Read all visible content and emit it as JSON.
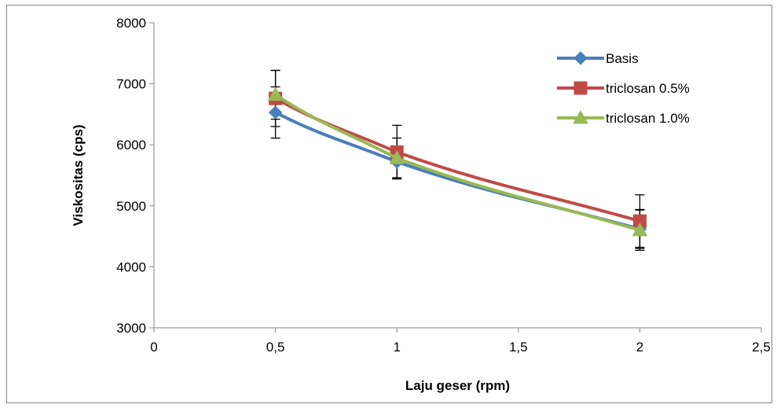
{
  "chart_data": {
    "type": "line",
    "title": "",
    "xlabel": "Laju geser (rpm)",
    "ylabel": "Viskositas (cps)",
    "xlim": [
      0,
      2.5
    ],
    "ylim": [
      3000,
      8000
    ],
    "x_ticks": [
      {
        "value": 0,
        "label": "0"
      },
      {
        "value": 0.5,
        "label": "0,5"
      },
      {
        "value": 1,
        "label": "1"
      },
      {
        "value": 1.5,
        "label": "1,5"
      },
      {
        "value": 2,
        "label": "2"
      },
      {
        "value": 2.5,
        "label": "2,5"
      }
    ],
    "y_ticks": [
      {
        "value": 3000,
        "label": "3000"
      },
      {
        "value": 4000,
        "label": "4000"
      },
      {
        "value": 5000,
        "label": "5000"
      },
      {
        "value": 6000,
        "label": "6000"
      },
      {
        "value": 7000,
        "label": "7000"
      },
      {
        "value": 8000,
        "label": "8000"
      }
    ],
    "grid": false,
    "legend_position": "top-right",
    "x": [
      0.5,
      1,
      2
    ],
    "series": [
      {
        "name": "Basis",
        "marker": "diamond",
        "color": "#4a7ebb",
        "values": [
          6530,
          5720,
          4620
        ],
        "error": [
          420,
          260,
          320
        ]
      },
      {
        "name": "triclosan 0.5%",
        "marker": "square",
        "color": "#be4b48",
        "values": [
          6760,
          5880,
          4750
        ],
        "error": [
          460,
          440,
          430
        ]
      },
      {
        "name": "triclosan 1.0%",
        "marker": "triangle",
        "color": "#98b954",
        "values": [
          6820,
          5780,
          4600
        ],
        "error": [
          400,
          330,
          330
        ]
      }
    ]
  }
}
